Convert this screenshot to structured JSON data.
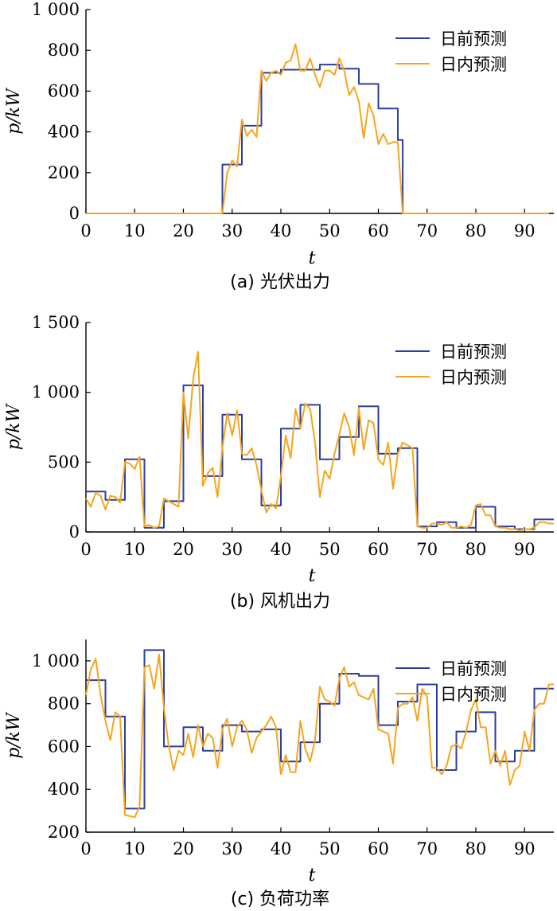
{
  "colors": {
    "day_ahead": "#2b3f9e",
    "intra_day": "#f5a51e"
  },
  "chart_data": [
    {
      "type": "line",
      "caption": "(a)  光伏出力",
      "xlabel": "t",
      "ylabel": "p/kW",
      "xlim": [
        0,
        96
      ],
      "ylim": [
        0,
        1000
      ],
      "xticks": [
        0,
        10,
        20,
        30,
        40,
        50,
        60,
        70,
        80,
        90
      ],
      "yticks": [
        0,
        200,
        400,
        600,
        800,
        1000
      ],
      "ytick_labels": [
        "0",
        "200",
        "400",
        "600",
        "800",
        "1 000"
      ],
      "legend_position": "top-right",
      "series": [
        {
          "name": "日前预测",
          "style": "step",
          "x": [
            0,
            28,
            28,
            32,
            32,
            36,
            36,
            40,
            40,
            48,
            48,
            52,
            52,
            56,
            56,
            60,
            60,
            64,
            64,
            65,
            65,
            95
          ],
          "y": [
            0,
            0,
            240,
            240,
            430,
            430,
            690,
            690,
            705,
            705,
            730,
            730,
            710,
            710,
            635,
            635,
            515,
            515,
            360,
            360,
            0,
            0
          ]
        },
        {
          "name": "日内预测",
          "style": "line",
          "x": [
            0,
            28,
            29,
            30,
            31,
            32,
            33,
            34,
            35,
            36,
            37,
            38,
            39,
            40,
            41,
            42,
            43,
            44,
            45,
            46,
            47,
            48,
            49,
            50,
            51,
            52,
            53,
            54,
            55,
            56,
            57,
            58,
            59,
            60,
            61,
            62,
            63,
            64,
            65,
            95
          ],
          "y": [
            0,
            0,
            200,
            260,
            230,
            460,
            380,
            410,
            375,
            700,
            650,
            690,
            700,
            680,
            740,
            750,
            830,
            700,
            700,
            760,
            680,
            620,
            700,
            700,
            680,
            760,
            700,
            580,
            620,
            550,
            370,
            540,
            480,
            340,
            390,
            340,
            350,
            350,
            0,
            0
          ]
        }
      ]
    },
    {
      "type": "line",
      "caption": "(b)  风机出力",
      "xlabel": "t",
      "ylabel": "p/kW",
      "xlim": [
        0,
        96
      ],
      "ylim": [
        0,
        1500
      ],
      "xticks": [
        0,
        10,
        20,
        30,
        40,
        50,
        60,
        70,
        80,
        90
      ],
      "yticks": [
        0,
        500,
        1000,
        1500
      ],
      "ytick_labels": [
        "0",
        "500",
        "1 000",
        "1 500"
      ],
      "legend_position": "top-right",
      "series": [
        {
          "name": "日前预测",
          "style": "step",
          "x": [
            0,
            4,
            4,
            8,
            8,
            12,
            12,
            16,
            16,
            20,
            20,
            24,
            24,
            28,
            28,
            32,
            32,
            36,
            36,
            40,
            40,
            44,
            44,
            48,
            48,
            52,
            52,
            56,
            56,
            60,
            60,
            64,
            64,
            68,
            68,
            72,
            72,
            76,
            76,
            80,
            80,
            84,
            84,
            88,
            88,
            92,
            92,
            96
          ],
          "y": [
            290,
            290,
            230,
            230,
            520,
            520,
            30,
            30,
            220,
            220,
            1050,
            1050,
            400,
            400,
            840,
            840,
            520,
            520,
            190,
            190,
            740,
            740,
            910,
            910,
            520,
            520,
            680,
            680,
            900,
            900,
            560,
            560,
            600,
            600,
            40,
            40,
            70,
            70,
            30,
            30,
            180,
            180,
            40,
            40,
            20,
            20,
            90,
            90
          ]
        },
        {
          "name": "日内预测",
          "style": "line",
          "x": [
            0,
            1,
            2,
            3,
            4,
            5,
            6,
            7,
            8,
            9,
            10,
            11,
            12,
            13,
            14,
            15,
            16,
            17,
            18,
            19,
            20,
            21,
            22,
            23,
            24,
            25,
            26,
            27,
            28,
            29,
            30,
            31,
            32,
            33,
            34,
            35,
            36,
            37,
            38,
            39,
            40,
            41,
            42,
            43,
            44,
            45,
            46,
            47,
            48,
            49,
            50,
            51,
            52,
            53,
            54,
            55,
            56,
            57,
            58,
            59,
            60,
            61,
            62,
            63,
            64,
            65,
            66,
            67,
            68,
            69,
            70,
            71,
            72,
            73,
            74,
            75,
            76,
            77,
            78,
            79,
            80,
            81,
            82,
            83,
            84,
            85,
            86,
            87,
            88,
            89,
            90,
            91,
            92,
            93,
            94,
            95,
            96
          ],
          "y": [
            240,
            180,
            280,
            260,
            160,
            260,
            250,
            210,
            500,
            490,
            450,
            540,
            40,
            50,
            30,
            40,
            240,
            220,
            200,
            180,
            1000,
            670,
            1100,
            1290,
            330,
            420,
            460,
            250,
            600,
            850,
            690,
            870,
            560,
            550,
            600,
            480,
            300,
            140,
            200,
            170,
            400,
            690,
            530,
            880,
            740,
            920,
            880,
            640,
            250,
            440,
            380,
            560,
            700,
            850,
            750,
            550,
            890,
            590,
            800,
            780,
            520,
            480,
            640,
            310,
            560,
            640,
            620,
            600,
            40,
            30,
            30,
            60,
            60,
            50,
            70,
            30,
            30,
            40,
            30,
            50,
            190,
            200,
            120,
            120,
            40,
            30,
            30,
            20,
            20,
            10,
            20,
            20,
            30,
            70,
            70,
            60,
            60
          ]
        }
      ]
    },
    {
      "type": "line",
      "caption": "(c)  负荷功率",
      "xlabel": "t",
      "ylabel": "p/kW",
      "xlim": [
        0,
        96
      ],
      "ylim": [
        200,
        1100
      ],
      "xticks": [
        0,
        10,
        20,
        30,
        40,
        50,
        60,
        70,
        80,
        90
      ],
      "yticks": [
        200,
        400,
        600,
        800,
        1000
      ],
      "ytick_labels": [
        "200",
        "400",
        "600",
        "800",
        "1 000"
      ],
      "legend_position": "top-right",
      "series": [
        {
          "name": "日前预测",
          "style": "step",
          "x": [
            0,
            4,
            4,
            8,
            8,
            12,
            12,
            16,
            16,
            20,
            20,
            24,
            24,
            28,
            28,
            32,
            32,
            36,
            36,
            40,
            40,
            44,
            44,
            48,
            48,
            52,
            52,
            56,
            56,
            60,
            60,
            64,
            64,
            68,
            68,
            72,
            72,
            76,
            76,
            80,
            80,
            84,
            84,
            88,
            88,
            92,
            92,
            96
          ],
          "y": [
            910,
            910,
            740,
            740,
            310,
            310,
            1050,
            1050,
            600,
            600,
            690,
            690,
            580,
            580,
            700,
            700,
            670,
            670,
            680,
            680,
            530,
            530,
            620,
            620,
            800,
            800,
            940,
            940,
            930,
            930,
            700,
            700,
            810,
            810,
            890,
            890,
            490,
            490,
            670,
            670,
            760,
            760,
            530,
            530,
            580,
            580,
            870,
            870
          ]
        },
        {
          "name": "日内预测",
          "style": "line",
          "x": [
            0,
            1,
            2,
            3,
            4,
            5,
            6,
            7,
            8,
            9,
            10,
            11,
            12,
            13,
            14,
            15,
            16,
            17,
            18,
            19,
            20,
            21,
            22,
            23,
            24,
            25,
            26,
            27,
            28,
            29,
            30,
            31,
            32,
            33,
            34,
            35,
            36,
            37,
            38,
            39,
            40,
            41,
            42,
            43,
            44,
            45,
            46,
            47,
            48,
            49,
            50,
            51,
            52,
            53,
            54,
            55,
            56,
            57,
            58,
            59,
            60,
            61,
            62,
            63,
            64,
            65,
            66,
            67,
            68,
            69,
            70,
            71,
            72,
            73,
            74,
            75,
            76,
            77,
            78,
            79,
            80,
            81,
            82,
            83,
            84,
            85,
            86,
            87,
            88,
            89,
            90,
            91,
            92,
            93,
            94,
            95,
            96
          ],
          "y": [
            840,
            960,
            1010,
            840,
            720,
            630,
            760,
            740,
            280,
            275,
            270,
            320,
            970,
            980,
            870,
            1030,
            780,
            600,
            490,
            580,
            560,
            660,
            550,
            700,
            600,
            660,
            640,
            500,
            680,
            730,
            600,
            690,
            720,
            680,
            570,
            640,
            670,
            700,
            740,
            690,
            470,
            560,
            480,
            480,
            720,
            590,
            530,
            630,
            880,
            820,
            810,
            790,
            920,
            970,
            880,
            900,
            840,
            830,
            820,
            870,
            680,
            670,
            660,
            520,
            780,
            800,
            800,
            830,
            720,
            870,
            830,
            500,
            500,
            470,
            510,
            600,
            610,
            590,
            670,
            770,
            820,
            690,
            690,
            520,
            580,
            510,
            580,
            420,
            490,
            510,
            670,
            580,
            770,
            800,
            800,
            890,
            890
          ]
        }
      ]
    }
  ]
}
